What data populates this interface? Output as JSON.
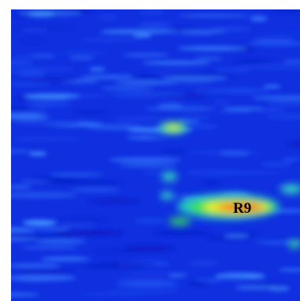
{
  "image": {
    "label": "R9"
  }
}
